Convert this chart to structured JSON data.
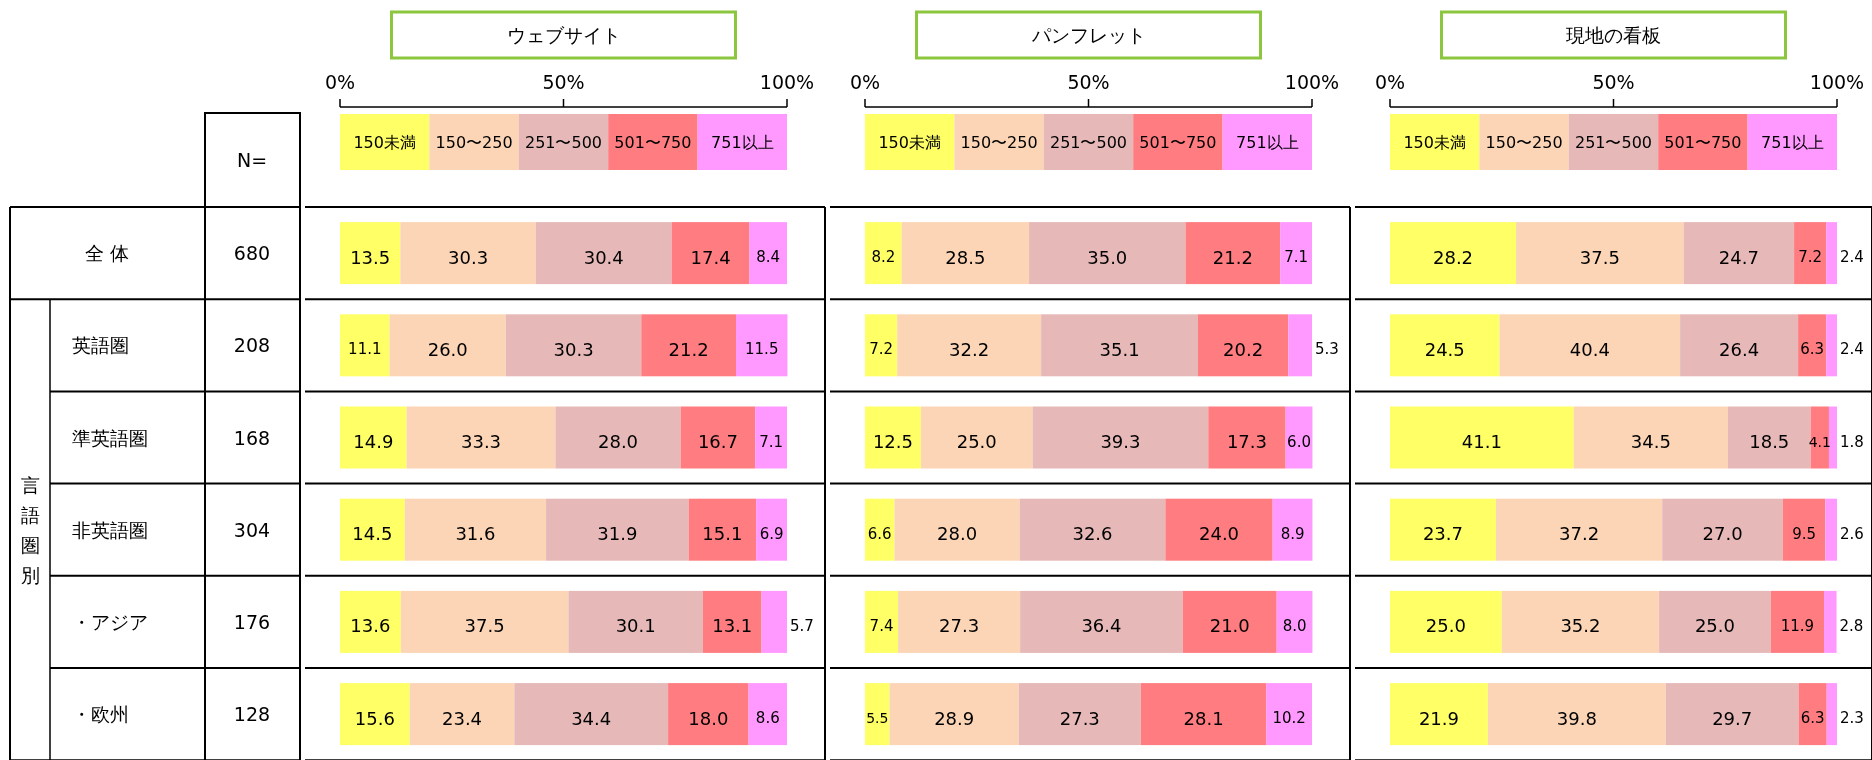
{
  "chart_data": [
    {
      "type": "other",
      "title": "N=",
      "categories": [
        "全 体",
        "英語圏",
        "準英語圏",
        "非英語圏",
        "・アジア",
        "・欧州"
      ],
      "values": [
        680,
        208,
        168,
        304,
        176,
        128
      ],
      "data_labels": true,
      "annotations": [
        "言語圏別"
      ]
    },
    {
      "type": "bar",
      "orientation": "horizontal",
      "stacked": true,
      "title": "ウェブサイト",
      "categories": [
        null,
        null,
        null,
        null,
        null,
        null
      ],
      "xlim": [
        0,
        100
      ],
      "xticks": [
        {
          "value": 0,
          "label": "0%"
        },
        {
          "value": 50,
          "label": "50%"
        },
        {
          "value": 100,
          "label": "100%"
        }
      ],
      "legend": "top",
      "series": [
        {
          "name": "150未満",
          "color": "#ffff66",
          "values": [
            13.5,
            11.1,
            14.9,
            14.5,
            13.6,
            15.6
          ],
          "value_labels": [
            "13.5",
            "11.1",
            "14.9",
            "14.5",
            "13.6",
            "15.6"
          ]
        },
        {
          "name": "150〜250",
          "color": "#fbd5b5",
          "values": [
            30.3,
            26.0,
            33.3,
            31.6,
            37.5,
            23.4
          ],
          "value_labels": [
            "30.3",
            "26.0",
            "33.3",
            "31.6",
            "37.5",
            "23.4"
          ]
        },
        {
          "name": "251〜500",
          "color": "#e6b9b8",
          "values": [
            30.4,
            30.3,
            28.0,
            31.9,
            30.1,
            34.4
          ],
          "value_labels": [
            "30.4",
            "30.3",
            "28.0",
            "31.9",
            "30.1",
            "34.4"
          ]
        },
        {
          "name": "501〜750",
          "color": "#ff7c80",
          "values": [
            17.4,
            21.2,
            16.7,
            15.1,
            13.1,
            18.0
          ],
          "value_labels": [
            "17.4",
            "21.2",
            "16.7",
            "15.1",
            "13.1",
            "18.0"
          ]
        },
        {
          "name": "751以上",
          "color": "#ff99ff",
          "values": [
            8.4,
            11.5,
            7.1,
            6.9,
            5.7,
            8.6
          ],
          "value_labels": [
            "8.4",
            "11.5",
            "7.1",
            "6.9",
            "5.7",
            "8.6"
          ]
        }
      ]
    },
    {
      "type": "bar",
      "orientation": "horizontal",
      "stacked": true,
      "title": "パンフレット",
      "categories": [
        null,
        null,
        null,
        null,
        null,
        null
      ],
      "xlim": [
        0,
        100
      ],
      "xticks": [
        {
          "value": 0,
          "label": "0%"
        },
        {
          "value": 50,
          "label": "50%"
        },
        {
          "value": 100,
          "label": "100%"
        }
      ],
      "legend": "top",
      "series": [
        {
          "name": "150未満",
          "color": "#ffff66",
          "values": [
            8.2,
            7.2,
            12.5,
            6.6,
            7.4,
            5.5
          ],
          "value_labels": [
            "8.2",
            "7.2",
            "12.5",
            "6.6",
            "7.4",
            "5.5"
          ]
        },
        {
          "name": "150〜250",
          "color": "#fbd5b5",
          "values": [
            28.5,
            32.2,
            25.0,
            28.0,
            27.3,
            28.9
          ],
          "value_labels": [
            "28.5",
            "32.2",
            "25.0",
            "28.0",
            "27.3",
            "28.9"
          ]
        },
        {
          "name": "251〜500",
          "color": "#e6b9b8",
          "values": [
            35.0,
            35.1,
            39.3,
            32.6,
            36.4,
            27.3
          ],
          "value_labels": [
            "35.0",
            "35.1",
            "39.3",
            "32.6",
            "36.4",
            "27.3"
          ]
        },
        {
          "name": "501〜750",
          "color": "#ff7c80",
          "values": [
            21.2,
            20.2,
            17.3,
            24.0,
            21.0,
            28.1
          ],
          "value_labels": [
            "21.2",
            "20.2",
            "17.3",
            "24.0",
            "21.0",
            "28.1"
          ]
        },
        {
          "name": "751以上",
          "color": "#ff99ff",
          "values": [
            7.1,
            5.3,
            6.0,
            8.9,
            8.0,
            10.2
          ],
          "value_labels": [
            "7.1",
            "5.3",
            "6.0",
            "8.9",
            "8.0",
            "10.2"
          ]
        }
      ]
    },
    {
      "type": "bar",
      "orientation": "horizontal",
      "stacked": true,
      "title": "現地の看板",
      "categories": [
        null,
        null,
        null,
        null,
        null,
        null
      ],
      "xlim": [
        0,
        100
      ],
      "xticks": [
        {
          "value": 0,
          "label": "0%"
        },
        {
          "value": 50,
          "label": "50%"
        },
        {
          "value": 100,
          "label": "100%"
        }
      ],
      "legend": "top",
      "series": [
        {
          "name": "150未満",
          "color": "#ffff66",
          "values": [
            28.2,
            24.5,
            41.1,
            23.7,
            25.0,
            21.9
          ],
          "value_labels": [
            "28.2",
            "24.5",
            "41.1",
            "23.7",
            "25.0",
            "21.9"
          ]
        },
        {
          "name": "150〜250",
          "color": "#fbd5b5",
          "values": [
            37.5,
            40.4,
            34.5,
            37.2,
            35.2,
            39.8
          ],
          "value_labels": [
            "37.5",
            "40.4",
            "34.5",
            "37.2",
            "35.2",
            "39.8"
          ]
        },
        {
          "name": "251〜500",
          "color": "#e6b9b8",
          "values": [
            24.7,
            26.4,
            18.5,
            27.0,
            25.0,
            29.7
          ],
          "value_labels": [
            "24.7",
            "26.4",
            "18.5",
            "27.0",
            "25.0",
            "29.7"
          ]
        },
        {
          "name": "501〜750",
          "color": "#ff7c80",
          "values": [
            7.2,
            6.3,
            4.1,
            9.5,
            11.9,
            6.3
          ],
          "value_labels": [
            "7.2",
            "6.3",
            "4.1",
            "9.5",
            "11.9",
            "6.3"
          ]
        },
        {
          "name": "751以上",
          "color": "#ff99ff",
          "values": [
            2.4,
            2.4,
            1.8,
            2.6,
            2.8,
            2.3
          ],
          "value_labels": [
            "2.4",
            "2.4",
            "1.8",
            "2.6",
            "2.8",
            "2.3"
          ]
        }
      ]
    }
  ]
}
